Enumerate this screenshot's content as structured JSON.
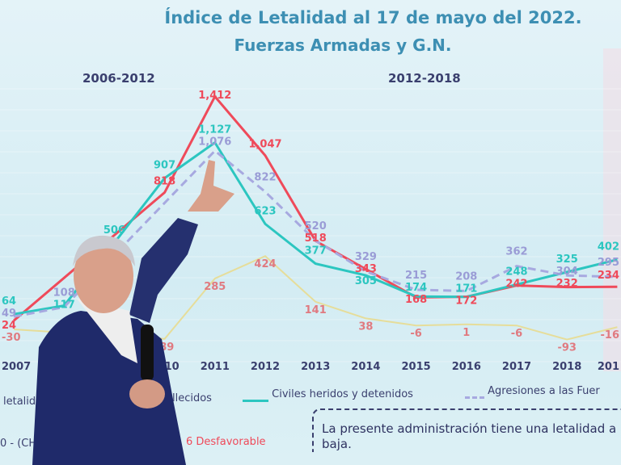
{
  "title_line1": "Índice de Letalidad al 17 de mayo del 2022.",
  "title_line2": "Fuerzas Armadas y G.N.",
  "period_left": "2006-2012",
  "period_right": "2012-2018",
  "legend": {
    "item1": "letalid",
    "item2": "allecidos",
    "item3": "Civiles heridos y detenidos",
    "item4": "Agresiones a las Fuer"
  },
  "footer_left": "0 - (CH 4",
  "footer_status": "6  Desfavorable",
  "note": "La presente administración tiene una letalidad a la baja.",
  "colors": {
    "red": "#ef4a5a",
    "cyan": "#2cc6c0",
    "dashed": "#a7a9e0",
    "yellow": "#e6dd9a",
    "text": "#3a3f6e",
    "title": "#3d8fb3"
  },
  "chart_data": {
    "type": "line",
    "title": "Índice de Letalidad al 17 de mayo del 2022. Fuerzas Armadas y G.N.",
    "categories": [
      "2007",
      "2008",
      "2009",
      "2010",
      "2011",
      "2012",
      "2013",
      "2014",
      "2015",
      "2016",
      "2017",
      "2018",
      "201"
    ],
    "series": [
      {
        "name": "allecidos",
        "color": "#ef4a5a",
        "style": "solid",
        "values": [
          24,
          null,
          null,
          818,
          1412,
          1047,
          518,
          343,
          168,
          172,
          242,
          232,
          234
        ]
      },
      {
        "name": "Civiles heridos y detenidos",
        "color": "#2cc6c0",
        "style": "solid",
        "values": [
          64,
          117,
          506,
          907,
          1127,
          623,
          377,
          305,
          174,
          171,
          248,
          325,
          402
        ]
      },
      {
        "name": "Agresiones a las Fuer",
        "color": "#a7a9e0",
        "style": "dashed",
        "values": [
          49,
          108,
          null,
          null,
          1076,
          822,
          520,
          329,
          215,
          208,
          362,
          304,
          295
        ]
      },
      {
        "name": "letalid",
        "color": "#e6dd9a",
        "style": "solid",
        "values": [
          -30,
          null,
          null,
          -89,
          285,
          424,
          141,
          38,
          -6,
          1,
          -6,
          -93,
          -16
        ]
      }
    ],
    "grid": false
  }
}
